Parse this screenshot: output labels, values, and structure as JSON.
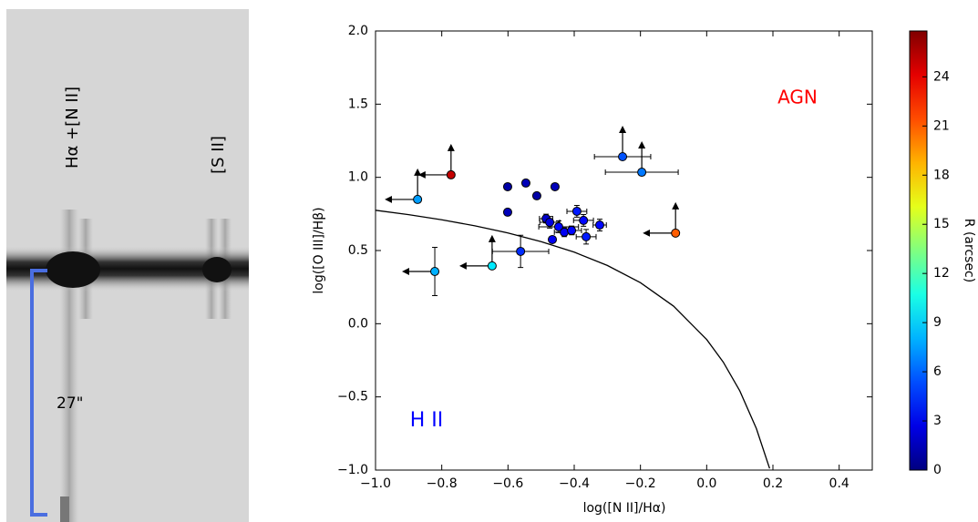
{
  "image_panel": {
    "line_labels": [
      "Hα +[N II]",
      "[S II]"
    ],
    "scale_label": "27\""
  },
  "chart_data": {
    "type": "scatter",
    "xlabel": "log([N II]/Hα)",
    "ylabel": "log([O III]/Hβ)",
    "xlim": [
      -1.0,
      0.5
    ],
    "ylim": [
      -1.0,
      2.0
    ],
    "xticks": [
      {
        "value": -1.0,
        "label": "−1.0"
      },
      {
        "value": -0.8,
        "label": "−0.8"
      },
      {
        "value": -0.6,
        "label": "−0.6"
      },
      {
        "value": -0.4,
        "label": "−0.4"
      },
      {
        "value": -0.2,
        "label": "−0.2"
      },
      {
        "value": 0,
        "label": "0.0"
      },
      0.2,
      0.4
    ],
    "yticks": [
      {
        "value": -1.0,
        "label": "−1.0"
      },
      {
        "value": -0.5,
        "label": "−0.5"
      },
      {
        "value": 0,
        "label": "0.0"
      },
      0.5,
      {
        "value": 1.0,
        "label": "1.0"
      },
      1.5,
      {
        "value": 2.0,
        "label": "2.0"
      }
    ],
    "grid": false,
    "x": [
      -0.873,
      -0.772,
      -0.821,
      -0.648,
      -0.562,
      -0.254,
      -0.196,
      -0.094,
      -0.601,
      -0.546,
      -0.513,
      -0.458,
      -0.601,
      -0.485,
      -0.474,
      -0.447,
      -0.466,
      -0.43,
      -0.408,
      -0.392,
      -0.372,
      -0.364,
      -0.323
    ],
    "y": [
      0.849,
      1.017,
      0.357,
      0.395,
      0.494,
      1.141,
      1.035,
      0.619,
      0.936,
      0.961,
      0.874,
      0.936,
      0.762,
      0.718,
      0.693,
      0.662,
      0.575,
      0.625,
      0.637,
      0.768,
      0.706,
      0.594,
      0.674
    ],
    "xerr": [
      null,
      null,
      null,
      null,
      0.085,
      0.085,
      0.11,
      null,
      null,
      null,
      null,
      null,
      null,
      0.02,
      0.03,
      0.06,
      null,
      0.03,
      0.03,
      0.03,
      0.03,
      0.03,
      0.02
    ],
    "yerr": [
      null,
      null,
      0.165,
      null,
      0.11,
      null,
      null,
      null,
      null,
      null,
      null,
      null,
      null,
      0.03,
      0.04,
      0.04,
      null,
      0.03,
      0.03,
      0.04,
      0.04,
      0.05,
      0.04
    ],
    "R": [
      7.5,
      25,
      8,
      9.5,
      4.5,
      5.5,
      6.5,
      21,
      1,
      1.5,
      1,
      1.5,
      1.5,
      2,
      2.5,
      3.5,
      3,
      3,
      3.5,
      4,
      3.5,
      4,
      3.5
    ],
    "x_upper_limit": [
      true,
      true,
      true,
      true,
      false,
      false,
      false,
      true,
      false,
      false,
      false,
      false,
      false,
      false,
      false,
      false,
      false,
      false,
      false,
      false,
      false,
      false,
      false
    ],
    "y_lower_limit": [
      true,
      true,
      false,
      true,
      false,
      true,
      true,
      true,
      false,
      false,
      false,
      false,
      false,
      false,
      false,
      false,
      false,
      false,
      false,
      false,
      false,
      false,
      false
    ],
    "curve": {
      "x": [
        -1.0,
        -0.9,
        -0.8,
        -0.7,
        -0.6,
        -0.5,
        -0.4,
        -0.3,
        -0.2,
        -0.1,
        0.0,
        0.05,
        0.1,
        0.15,
        0.19
      ],
      "y": [
        0.775,
        0.745,
        0.71,
        0.669,
        0.62,
        0.561,
        0.489,
        0.398,
        0.28,
        0.12,
        -0.108,
        -0.262,
        -0.459,
        -0.716,
        -0.989
      ],
      "color": "#000000"
    },
    "annotations": [
      {
        "text": "AGN",
        "color": "#ff0000"
      },
      {
        "text": "H II",
        "color": "#0000ff"
      }
    ],
    "colorbar": {
      "label": "R (arcsec)",
      "cmap": "jet",
      "lim": [
        0,
        26.8
      ],
      "ticks": [
        0,
        3,
        6,
        9,
        12,
        15,
        18,
        21,
        24
      ]
    }
  }
}
